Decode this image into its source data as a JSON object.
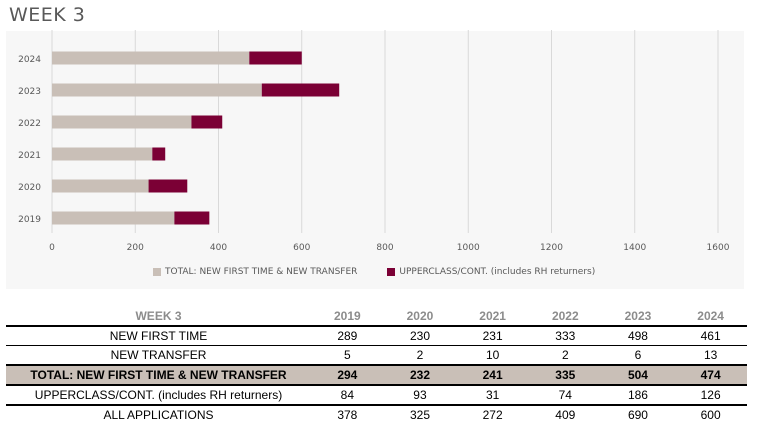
{
  "page_title": "WEEK 3",
  "colors": {
    "total": "#c9bfb7",
    "upperclass": "#7b0035",
    "grid": "#d9d9d9",
    "axis_text": "#595959"
  },
  "chart_data": {
    "type": "bar",
    "orientation": "horizontal",
    "stacked": true,
    "categories": [
      "2024",
      "2023",
      "2022",
      "2021",
      "2020",
      "2019"
    ],
    "series": [
      {
        "name": "TOTAL: NEW FIRST TIME & NEW TRANSFER",
        "values": [
          474,
          504,
          335,
          241,
          232,
          294
        ]
      },
      {
        "name": "UPPERCLASS/CONT. (includes RH returners)",
        "values": [
          126,
          186,
          74,
          31,
          93,
          84
        ]
      }
    ],
    "xlim": [
      0,
      1600
    ],
    "xticks": [
      "0",
      "200",
      "400",
      "600",
      "800",
      "1000",
      "1200",
      "1400",
      "1600"
    ],
    "legend_position": "bottom",
    "grid": true
  },
  "table": {
    "header": "WEEK 3",
    "years": [
      "2019",
      "2020",
      "2021",
      "2022",
      "2023",
      "2024"
    ],
    "rows": [
      {
        "label": "NEW FIRST TIME",
        "values": [
          "289",
          "230",
          "231",
          "333",
          "498",
          "461"
        ]
      },
      {
        "label": "NEW TRANSFER",
        "values": [
          "5",
          "2",
          "10",
          "2",
          "6",
          "13"
        ]
      },
      {
        "label": "TOTAL: NEW FIRST TIME & NEW TRANSFER",
        "values": [
          "294",
          "232",
          "241",
          "335",
          "504",
          "474"
        ]
      },
      {
        "label": "UPPERCLASS/CONT. (includes RH returners)",
        "values": [
          "84",
          "93",
          "31",
          "74",
          "186",
          "126"
        ]
      },
      {
        "label": "ALL APPLICATIONS",
        "values": [
          "378",
          "325",
          "272",
          "409",
          "690",
          "600"
        ]
      }
    ]
  }
}
